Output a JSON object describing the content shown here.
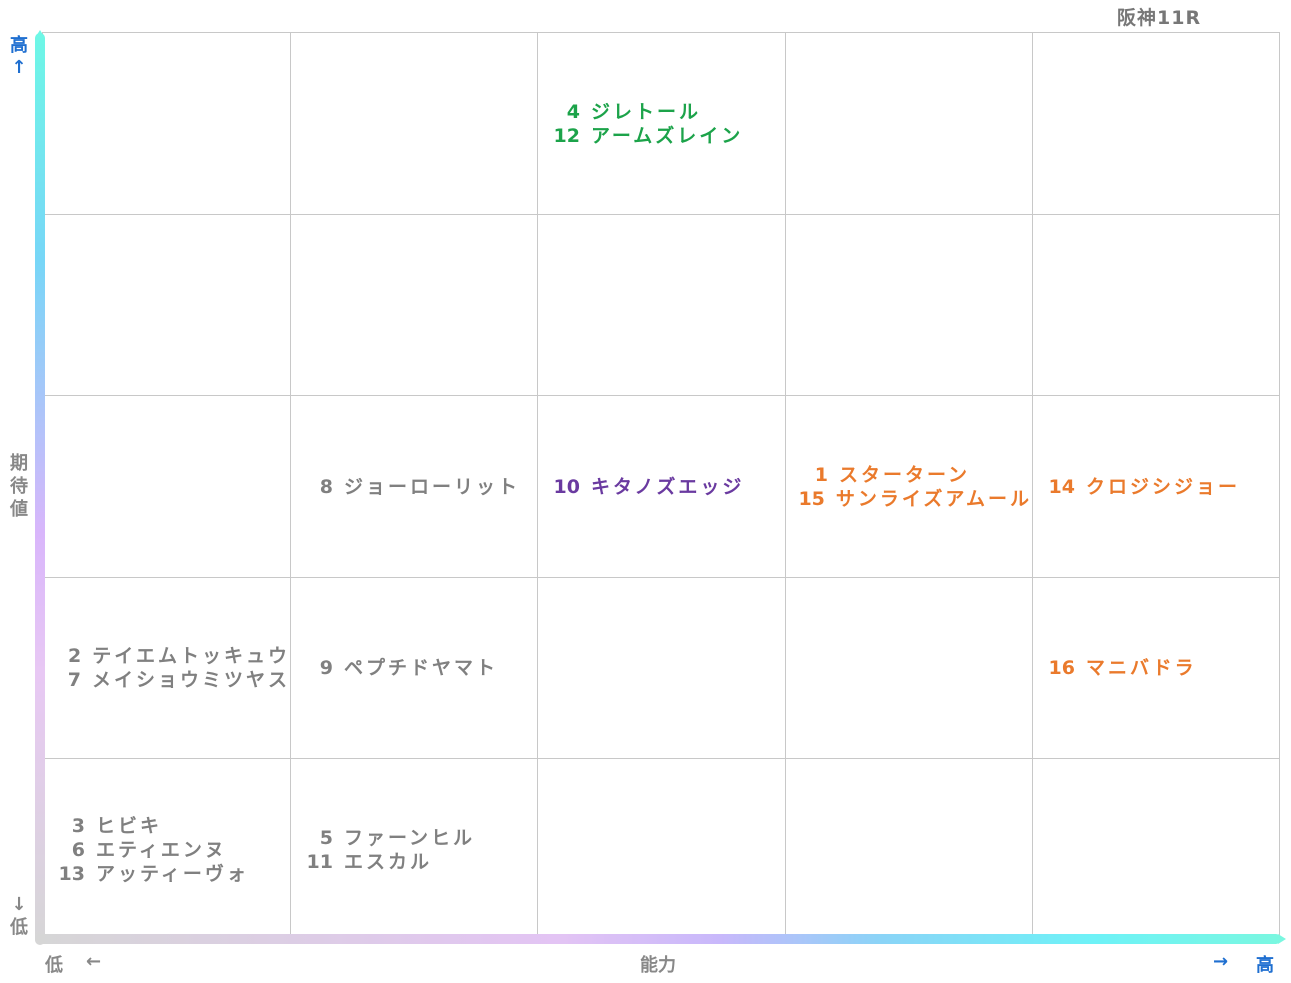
{
  "title": "阪神11R",
  "axes": {
    "y_high": "高",
    "y_high_arrow": "↑",
    "y_label": "期待値",
    "y_low_arrow": "↓",
    "y_low": "低",
    "x_low": "低",
    "x_low_arrow": "←",
    "x_label": "能力",
    "x_high_arrow": "→",
    "x_high": "高"
  },
  "colors": {
    "gray": "#808080",
    "green": "#1ca34a",
    "purple": "#6a3aa0",
    "orange": "#ea7a2c",
    "axis_label_blue": "#1f6fd0"
  },
  "grid": [
    [
      [],
      [],
      [
        {
          "num": "4",
          "name": "ジレトール",
          "color": "green"
        },
        {
          "num": "12",
          "name": "アームズレイン",
          "color": "green"
        }
      ],
      [],
      []
    ],
    [
      [],
      [],
      [],
      [],
      []
    ],
    [
      [],
      [
        {
          "num": "8",
          "name": "ジョーローリット",
          "color": "gray"
        }
      ],
      [
        {
          "num": "10",
          "name": "キタノズエッジ",
          "color": "purple"
        }
      ],
      [
        {
          "num": "1",
          "name": "スターターン",
          "color": "orange"
        },
        {
          "num": "15",
          "name": "サンライズアムール",
          "color": "orange"
        }
      ],
      [
        {
          "num": "14",
          "name": "クロジシジョー",
          "color": "orange"
        }
      ]
    ],
    [
      [
        {
          "num": "2",
          "name": "テイエムトッキュウ",
          "color": "gray"
        },
        {
          "num": "7",
          "name": "メイショウミツヤス",
          "color": "gray"
        }
      ],
      [
        {
          "num": "9",
          "name": "ペプチドヤマト",
          "color": "gray"
        }
      ],
      [],
      [],
      [
        {
          "num": "16",
          "name": "マニバドラ",
          "color": "orange"
        }
      ]
    ],
    [
      [
        {
          "num": "3",
          "name": "ヒビキ",
          "color": "gray"
        },
        {
          "num": "6",
          "name": "エティエンヌ",
          "color": "gray"
        },
        {
          "num": "13",
          "name": "アッティーヴォ",
          "color": "gray"
        }
      ],
      [
        {
          "num": "5",
          "name": "ファーンヒル",
          "color": "gray"
        },
        {
          "num": "11",
          "name": "エスカル",
          "color": "gray"
        }
      ],
      [],
      [],
      []
    ]
  ]
}
